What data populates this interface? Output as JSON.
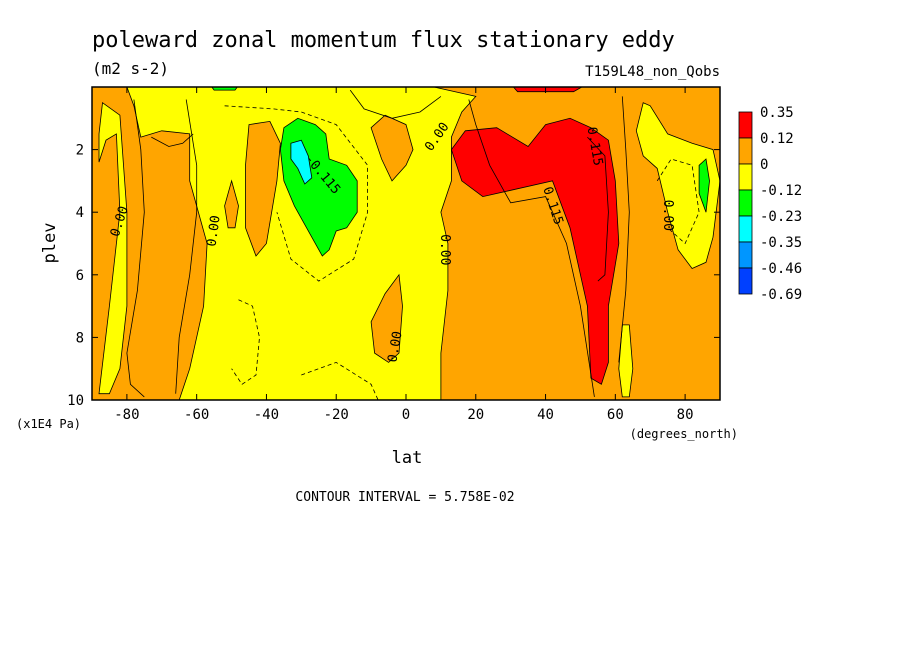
{
  "chart_data": {
    "type": "heatmap",
    "title": "poleward zonal momentum flux stationary eddy",
    "units": "(m2 s-2)",
    "run_label": "T159L48_non_Qobs",
    "xlabel": "lat",
    "xunits": "(degrees_north)",
    "ylabel": "plev",
    "yunits": "(x1E4 Pa)",
    "xlim": [
      -90,
      90
    ],
    "ylim": [
      10,
      0
    ],
    "x_ticks": [
      -80,
      -60,
      -40,
      -20,
      0,
      20,
      40,
      60,
      80
    ],
    "y_ticks": [
      2,
      4,
      6,
      8,
      10
    ],
    "contour_interval_text": "CONTOUR INTERVAL = 5.758E-02",
    "contour_labels": [
      {
        "text": "0.00",
        "lat": -82,
        "plev": 4.3,
        "angle": -72
      },
      {
        "text": "0.00",
        "lat": -55,
        "plev": 4.6,
        "angle": -82
      },
      {
        "text": "0.00",
        "lat": 11,
        "plev": 5.2,
        "angle": 90
      },
      {
        "text": "0.00",
        "lat": -3,
        "plev": 8.3,
        "angle": -80
      },
      {
        "text": "0.00",
        "lat": 9,
        "plev": 1.6,
        "angle": -55
      },
      {
        "text": "0.00",
        "lat": 75,
        "plev": 4.1,
        "angle": 90
      },
      {
        "text": "-0.115",
        "lat": -24,
        "plev": 2.8,
        "angle": 50
      },
      {
        "text": "0.115",
        "lat": 42,
        "plev": 3.8,
        "angle": 72
      },
      {
        "text": "0.115",
        "lat": 54,
        "plev": 1.9,
        "angle": 80
      }
    ],
    "legend": {
      "levels": [
        "0.35",
        "0.12",
        "0",
        "-0.12",
        "-0.23",
        "-0.35",
        "-0.46",
        "-0.69"
      ],
      "colors": [
        "#ff0000",
        "#ffa500",
        "#ffff00",
        "#00ff00",
        "#00ffff",
        "#0096ff",
        "#0040ff"
      ]
    },
    "background_color": "#ffa500",
    "regions": [
      {
        "name": "positive-0.35",
        "color": "#ff0000",
        "points": [
          [
            -72,
            0.2
          ],
          [
            -64,
            0.2
          ],
          [
            -63,
            0.9
          ],
          [
            -67,
            1.4
          ],
          [
            -71,
            1.0
          ]
        ]
      },
      {
        "name": "positive-0.35",
        "color": "#ff0000",
        "points": [
          [
            -42,
            1.9
          ],
          [
            -39,
            1.9
          ],
          [
            -39,
            2.5
          ],
          [
            -42,
            2.5
          ]
        ]
      },
      {
        "name": "positive-0.35",
        "color": "#ff0000",
        "points": [
          [
            -7,
            1.3
          ],
          [
            -4,
            1.3
          ],
          [
            -4,
            1.7
          ],
          [
            -7,
            1.7
          ]
        ]
      },
      {
        "name": "positive-0.35",
        "color": "#ff0000",
        "points": [
          [
            13,
            2.0
          ],
          [
            17,
            1.4
          ],
          [
            26,
            1.3
          ],
          [
            35,
            1.9
          ],
          [
            40,
            1.2
          ],
          [
            47,
            1.0
          ],
          [
            53,
            1.3
          ],
          [
            58,
            1.7
          ],
          [
            60,
            3.0
          ],
          [
            61,
            5.0
          ],
          [
            58,
            7.0
          ],
          [
            58,
            8.8
          ],
          [
            56,
            9.5
          ],
          [
            53,
            9.3
          ],
          [
            52,
            7.0
          ],
          [
            47,
            4.5
          ],
          [
            42,
            3.0
          ],
          [
            30,
            3.3
          ],
          [
            22,
            3.5
          ],
          [
            16,
            3.0
          ]
        ]
      },
      {
        "name": "positive-0.35",
        "color": "#ff0000",
        "points": [
          [
            30,
            -0.1
          ],
          [
            52,
            -0.1
          ],
          [
            48,
            0.15
          ],
          [
            32,
            0.15
          ]
        ]
      },
      {
        "name": "negative-0.12",
        "color": "#ffff00",
        "points": [
          [
            -88,
            2.4
          ],
          [
            -86,
            1.7
          ],
          [
            -83,
            1.5
          ],
          [
            -82,
            4.0
          ],
          [
            -85,
            7.0
          ],
          [
            -88,
            9.8
          ],
          [
            -85,
            9.8
          ],
          [
            -82,
            9.0
          ],
          [
            -80,
            7.0
          ],
          [
            -80,
            4.0
          ],
          [
            -82,
            0.9
          ],
          [
            -87,
            0.5
          ],
          [
            -88,
            1.5
          ]
        ]
      },
      {
        "name": "negative-0.12",
        "color": "#ffff00",
        "points": [
          [
            -80,
            0.0
          ],
          [
            8,
            0.0
          ],
          [
            20,
            0.3
          ],
          [
            16,
            0.8
          ],
          [
            13,
            1.6
          ],
          [
            13,
            3.0
          ],
          [
            10,
            4.0
          ],
          [
            12,
            5.0
          ],
          [
            12,
            6.5
          ],
          [
            10,
            8.5
          ],
          [
            10,
            10
          ],
          [
            -65,
            10
          ],
          [
            -62,
            9.0
          ],
          [
            -58,
            7.0
          ],
          [
            -57,
            5.0
          ],
          [
            -62,
            3.0
          ],
          [
            -62,
            1.5
          ],
          [
            -70,
            1.4
          ],
          [
            -76,
            1.6
          ],
          [
            -78,
            0.6
          ]
        ]
      },
      {
        "name": "negative-0.12",
        "color": "#ffff00",
        "points": [
          [
            68,
            0.5
          ],
          [
            70,
            0.6
          ],
          [
            75,
            1.5
          ],
          [
            82,
            1.8
          ],
          [
            88,
            2.0
          ],
          [
            90,
            3.0
          ],
          [
            88,
            4.8
          ],
          [
            86,
            5.6
          ],
          [
            82,
            5.8
          ],
          [
            78,
            5.2
          ],
          [
            75,
            4.0
          ],
          [
            72,
            2.6
          ],
          [
            68,
            2.2
          ],
          [
            66,
            1.4
          ]
        ]
      },
      {
        "name": "negative-0.12",
        "color": "#ffff00",
        "points": [
          [
            62,
            7.6
          ],
          [
            64,
            7.6
          ],
          [
            65,
            9.0
          ],
          [
            64,
            9.9
          ],
          [
            62,
            9.9
          ],
          [
            61,
            9.0
          ]
        ]
      },
      {
        "name": "positive-0.12",
        "color": "#ffa500",
        "points": [
          [
            -45,
            1.2
          ],
          [
            -39,
            1.1
          ],
          [
            -36,
            1.8
          ],
          [
            -37,
            3.0
          ],
          [
            -40,
            5.0
          ],
          [
            -43,
            5.4
          ],
          [
            -46,
            4.5
          ],
          [
            -46,
            2.5
          ]
        ]
      },
      {
        "name": "positive-0.12",
        "color": "#ffa500",
        "points": [
          [
            -10,
            1.3
          ],
          [
            -6,
            0.9
          ],
          [
            0,
            1.2
          ],
          [
            2,
            2.0
          ],
          [
            0,
            2.5
          ],
          [
            -4,
            3.0
          ],
          [
            -7,
            2.3
          ]
        ]
      },
      {
        "name": "positive-0.12",
        "color": "#ffa500",
        "points": [
          [
            -10,
            7.5
          ],
          [
            -6,
            6.6
          ],
          [
            -2,
            6.0
          ],
          [
            -1,
            7.0
          ],
          [
            -2,
            8.5
          ],
          [
            -5,
            8.8
          ],
          [
            -9,
            8.5
          ]
        ]
      },
      {
        "name": "positive-0.12",
        "color": "#ffa500",
        "points": [
          [
            -50,
            3.0
          ],
          [
            -48,
            3.8
          ],
          [
            -49,
            4.5
          ],
          [
            -51,
            4.5
          ],
          [
            -52,
            3.8
          ]
        ]
      },
      {
        "name": "negative-0.23",
        "color": "#00ff00",
        "points": [
          [
            -35,
            1.3
          ],
          [
            -31,
            1.0
          ],
          [
            -26,
            1.2
          ],
          [
            -23,
            1.5
          ],
          [
            -22,
            2.3
          ],
          [
            -17,
            2.5
          ],
          [
            -14,
            3.0
          ],
          [
            -14,
            4.0
          ],
          [
            -17,
            4.5
          ],
          [
            -20,
            4.6
          ],
          [
            -22,
            5.2
          ],
          [
            -24,
            5.4
          ],
          [
            -27,
            4.8
          ],
          [
            -32,
            3.8
          ],
          [
            -35,
            3.0
          ],
          [
            -36,
            2.0
          ]
        ]
      },
      {
        "name": "negative-0.23",
        "color": "#00ff00",
        "points": [
          [
            84,
            2.5
          ],
          [
            86,
            2.3
          ],
          [
            87,
            3.0
          ],
          [
            86,
            4.0
          ],
          [
            84,
            3.4
          ]
        ]
      },
      {
        "name": "negative-0.23",
        "color": "#00ff00",
        "points": [
          [
            -56,
            -0.05
          ],
          [
            -48,
            -0.05
          ],
          [
            -49,
            0.1
          ],
          [
            -55,
            0.1
          ]
        ]
      },
      {
        "name": "negative-0.35",
        "color": "#00ffff",
        "points": [
          [
            -33,
            1.8
          ],
          [
            -30,
            1.7
          ],
          [
            -28,
            2.2
          ],
          [
            -27,
            2.9
          ],
          [
            -29,
            3.1
          ],
          [
            -31,
            2.6
          ],
          [
            -33,
            2.3
          ]
        ]
      }
    ],
    "contours": [
      {
        "style": "solid",
        "points": [
          [
            -73,
            1.6
          ],
          [
            -68,
            1.9
          ],
          [
            -64,
            1.8
          ],
          [
            -61,
            1.5
          ]
        ]
      },
      {
        "style": "solid",
        "points": [
          [
            -78,
            0.4
          ],
          [
            -76,
            2.0
          ],
          [
            -75,
            4.0
          ],
          [
            -77,
            6.5
          ],
          [
            -80,
            8.5
          ],
          [
            -79,
            9.5
          ],
          [
            -75,
            9.9
          ]
        ]
      },
      {
        "style": "solid",
        "points": [
          [
            -63,
            0.4
          ],
          [
            -60,
            2.5
          ],
          [
            -60,
            4.0
          ],
          [
            -62,
            6.0
          ],
          [
            -65,
            8.0
          ],
          [
            -66,
            9.8
          ]
        ]
      },
      {
        "style": "solid",
        "points": [
          [
            -16,
            0.1
          ],
          [
            -12,
            0.7
          ],
          [
            -4,
            1.0
          ],
          [
            4,
            0.8
          ],
          [
            10,
            0.3
          ]
        ]
      },
      {
        "style": "solid",
        "points": [
          [
            18,
            0.4
          ],
          [
            20,
            1.2
          ],
          [
            24,
            2.5
          ],
          [
            30,
            3.7
          ],
          [
            40,
            3.5
          ],
          [
            46,
            5.0
          ],
          [
            50,
            7.0
          ],
          [
            54,
            9.9
          ]
        ]
      },
      {
        "style": "solid",
        "points": [
          [
            62,
            0.3
          ],
          [
            63,
            2.0
          ],
          [
            64,
            4.0
          ],
          [
            63,
            6.5
          ],
          [
            61,
            8.8
          ]
        ]
      },
      {
        "style": "solid",
        "points": [
          [
            52,
            1.6
          ],
          [
            57,
            2.2
          ],
          [
            58,
            4.0
          ],
          [
            57,
            6.0
          ],
          [
            55,
            6.2
          ]
        ]
      },
      {
        "style": "dashed",
        "points": [
          [
            -52,
            0.6
          ],
          [
            -38,
            0.7
          ],
          [
            -30,
            0.8
          ],
          [
            -20,
            1.2
          ],
          [
            -11,
            2.5
          ],
          [
            -11,
            4.0
          ],
          [
            -15,
            5.5
          ],
          [
            -25,
            6.2
          ],
          [
            -33,
            5.5
          ],
          [
            -37,
            4.0
          ]
        ]
      },
      {
        "style": "dashed",
        "points": [
          [
            -48,
            6.8
          ],
          [
            -44,
            7.0
          ],
          [
            -42,
            8.0
          ],
          [
            -43,
            9.2
          ],
          [
            -47,
            9.5
          ],
          [
            -50,
            9.0
          ]
        ]
      },
      {
        "style": "dashed",
        "points": [
          [
            -30,
            9.2
          ],
          [
            -20,
            8.8
          ],
          [
            -10,
            9.5
          ],
          [
            -8,
            10
          ]
        ]
      },
      {
        "style": "dashed",
        "points": [
          [
            72,
            3.0
          ],
          [
            76,
            2.3
          ],
          [
            82,
            2.5
          ],
          [
            84,
            4.0
          ],
          [
            80,
            5.0
          ],
          [
            75,
            4.5
          ]
        ]
      }
    ]
  }
}
